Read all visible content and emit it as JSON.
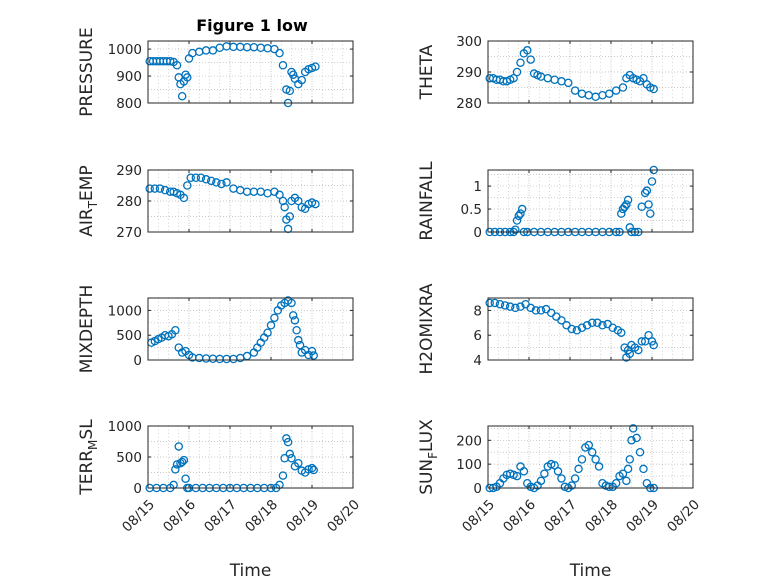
{
  "figure": {
    "title": "Figure 1 low",
    "background": "#ffffff"
  },
  "style": {
    "marker_color": "#0072BD",
    "axis_color": "#262626",
    "grid_color": "#b8b8b8"
  },
  "chart_data": [
    {
      "id": "pressure",
      "type": "scatter",
      "marker": "open-circle",
      "title": "Figure 1 low",
      "ylabel": {
        "main": "PRESSURE"
      },
      "xlabel": "",
      "x_ticks": [],
      "xlim": [
        "08/15",
        "08/20"
      ],
      "ylim": [
        800,
        1030
      ],
      "y_ticks": [
        800,
        900,
        1000
      ],
      "grid": true,
      "x": [
        "08/15 01:00",
        "08/15 03:00",
        "08/15 05:00",
        "08/15 07:00",
        "08/15 09:00",
        "08/15 11:00",
        "08/15 13:00",
        "08/15 15:00",
        "08/15 17:00",
        "08/15 18:00",
        "08/15 19:00",
        "08/15 20:00",
        "08/15 21:00",
        "08/15 22:00",
        "08/15 23:00",
        "08/16 00:00",
        "08/16 02:00",
        "08/16 06:00",
        "08/16 10:00",
        "08/16 14:00",
        "08/16 18:00",
        "08/16 22:00",
        "08/17 02:00",
        "08/17 06:00",
        "08/17 10:00",
        "08/17 14:00",
        "08/17 18:00",
        "08/17 22:00",
        "08/18 02:00",
        "08/18 05:00",
        "08/18 07:00",
        "08/18 09:00",
        "08/18 10:00",
        "08/18 11:00",
        "08/18 12:00",
        "08/18 13:00",
        "08/18 14:00",
        "08/18 16:00",
        "08/18 18:00",
        "08/18 20:00",
        "08/18 22:00",
        "08/19 00:00",
        "08/19 02:00"
      ],
      "y": [
        955,
        955,
        955,
        955,
        955,
        955,
        955,
        952,
        940,
        895,
        870,
        825,
        880,
        905,
        895,
        965,
        985,
        990,
        995,
        995,
        1005,
        1010,
        1008,
        1008,
        1007,
        1007,
        1005,
        1003,
        1000,
        985,
        940,
        850,
        800,
        845,
        915,
        905,
        890,
        870,
        885,
        915,
        925,
        930,
        935
      ]
    },
    {
      "id": "theta",
      "type": "scatter",
      "marker": "open-circle",
      "ylabel": {
        "main": "THETA"
      },
      "xlabel": "",
      "x_ticks": [],
      "xlim": [
        "08/15",
        "08/20"
      ],
      "ylim": [
        280,
        300
      ],
      "y_ticks": [
        280,
        290,
        300
      ],
      "grid": true,
      "x": [
        "08/15 01:00",
        "08/15 03:00",
        "08/15 05:00",
        "08/15 07:00",
        "08/15 09:00",
        "08/15 11:00",
        "08/15 13:00",
        "08/15 15:00",
        "08/15 17:00",
        "08/15 19:00",
        "08/15 21:00",
        "08/15 23:00",
        "08/16 01:00",
        "08/16 03:00",
        "08/16 05:00",
        "08/16 07:00",
        "08/16 11:00",
        "08/16 15:00",
        "08/16 19:00",
        "08/16 23:00",
        "08/17 03:00",
        "08/17 07:00",
        "08/17 11:00",
        "08/17 15:00",
        "08/17 19:00",
        "08/17 23:00",
        "08/18 03:00",
        "08/18 07:00",
        "08/18 09:00",
        "08/18 11:00",
        "08/18 13:00",
        "08/18 15:00",
        "08/18 17:00",
        "08/18 19:00",
        "08/18 21:00",
        "08/18 23:00",
        "08/19 01:00"
      ],
      "y": [
        288,
        288,
        287.5,
        287.5,
        287,
        287,
        287.5,
        288,
        290,
        293,
        296,
        297,
        294,
        289.5,
        289,
        288.5,
        288,
        287.5,
        287,
        286.5,
        284,
        283,
        282.5,
        282,
        282.5,
        283,
        284,
        285,
        288,
        289,
        288,
        287.5,
        287,
        288,
        286,
        285,
        284.5
      ]
    },
    {
      "id": "air_temp",
      "type": "scatter",
      "marker": "open-circle",
      "ylabel": {
        "main": "AIR",
        "sub": "T",
        "rest": "EMP"
      },
      "xlabel": "",
      "x_ticks": [],
      "xlim": [
        "08/15",
        "08/20"
      ],
      "ylim": [
        270,
        290
      ],
      "y_ticks": [
        270,
        280,
        290
      ],
      "grid": true,
      "x": [
        "08/15 01:00",
        "08/15 04:00",
        "08/15 07:00",
        "08/15 10:00",
        "08/15 13:00",
        "08/15 15:00",
        "08/15 17:00",
        "08/15 19:00",
        "08/15 21:00",
        "08/15 23:00",
        "08/16 01:00",
        "08/16 04:00",
        "08/16 07:00",
        "08/16 10:00",
        "08/16 13:00",
        "08/16 16:00",
        "08/16 19:00",
        "08/16 22:00",
        "08/17 02:00",
        "08/17 06:00",
        "08/17 10:00",
        "08/17 14:00",
        "08/17 18:00",
        "08/17 22:00",
        "08/18 02:00",
        "08/18 05:00",
        "08/18 07:00",
        "08/18 08:00",
        "08/18 09:00",
        "08/18 10:00",
        "08/18 11:00",
        "08/18 12:00",
        "08/18 14:00",
        "08/18 16:00",
        "08/18 18:00",
        "08/18 20:00",
        "08/18 22:00",
        "08/19 00:00",
        "08/19 02:00"
      ],
      "y": [
        284,
        284,
        284,
        283.5,
        283,
        283,
        282.5,
        282,
        281,
        285,
        287.5,
        287.5,
        287.5,
        287,
        286.5,
        286,
        285.5,
        286,
        284,
        283.5,
        283,
        283,
        283,
        282.5,
        283,
        282,
        280,
        278,
        274,
        271,
        275,
        280,
        281,
        280,
        278,
        277.5,
        279,
        279.5,
        279
      ]
    },
    {
      "id": "rainfall",
      "type": "scatter",
      "marker": "open-circle",
      "ylabel": {
        "main": "RAINFALL"
      },
      "xlabel": "",
      "x_ticks": [],
      "xlim": [
        "08/15",
        "08/20"
      ],
      "ylim": [
        0,
        1.35
      ],
      "y_ticks": [
        0,
        0.5,
        1
      ],
      "grid": true,
      "x": [
        "08/15 01:00",
        "08/15 04:00",
        "08/15 07:00",
        "08/15 10:00",
        "08/15 13:00",
        "08/15 15:00",
        "08/15 16:00",
        "08/15 17:00",
        "08/15 18:00",
        "08/15 19:00",
        "08/15 20:00",
        "08/15 21:00",
        "08/15 23:00",
        "08/16 03:00",
        "08/16 07:00",
        "08/16 11:00",
        "08/16 15:00",
        "08/16 19:00",
        "08/16 23:00",
        "08/17 03:00",
        "08/17 07:00",
        "08/17 11:00",
        "08/17 15:00",
        "08/17 19:00",
        "08/17 23:00",
        "08/18 03:00",
        "08/18 05:00",
        "08/18 06:00",
        "08/18 07:00",
        "08/18 08:00",
        "08/18 09:00",
        "08/18 10:00",
        "08/18 11:00",
        "08/18 12:00",
        "08/18 14:00",
        "08/18 16:00",
        "08/18 18:00",
        "08/18 20:00",
        "08/18 21:00",
        "08/18 22:00",
        "08/18 23:00",
        "08/19 00:00",
        "08/19 01:00"
      ],
      "y": [
        0,
        0,
        0,
        0,
        0,
        0,
        0.05,
        0.25,
        0.35,
        0.4,
        0.5,
        0,
        0,
        0,
        0,
        0,
        0,
        0,
        0,
        0,
        0,
        0,
        0,
        0,
        0,
        0,
        0,
        0.4,
        0.5,
        0.55,
        0.6,
        0.7,
        0.1,
        0,
        0,
        0,
        0.55,
        0.85,
        0.9,
        0.6,
        0.4,
        1.1,
        1.35
      ]
    },
    {
      "id": "mixdepth",
      "type": "scatter",
      "marker": "open-circle",
      "ylabel": {
        "main": "MIXDEPTH"
      },
      "xlabel": "",
      "x_ticks": [],
      "xlim": [
        "08/15",
        "08/20"
      ],
      "ylim": [
        0,
        1250
      ],
      "y_ticks": [
        0,
        500,
        1000
      ],
      "grid": true,
      "x": [
        "08/15 02:00",
        "08/15 04:00",
        "08/15 06:00",
        "08/15 08:00",
        "08/15 10:00",
        "08/15 12:00",
        "08/15 14:00",
        "08/15 16:00",
        "08/15 18:00",
        "08/15 20:00",
        "08/15 22:00",
        "08/16 00:00",
        "08/16 02:00",
        "08/16 06:00",
        "08/16 10:00",
        "08/16 14:00",
        "08/16 18:00",
        "08/16 22:00",
        "08/17 02:00",
        "08/17 06:00",
        "08/17 10:00",
        "08/17 14:00",
        "08/17 16:00",
        "08/17 18:00",
        "08/17 20:00",
        "08/17 22:00",
        "08/18 00:00",
        "08/18 02:00",
        "08/18 04:00",
        "08/18 06:00",
        "08/18 08:00",
        "08/18 10:00",
        "08/18 12:00",
        "08/18 13:00",
        "08/18 14:00",
        "08/18 15:00",
        "08/18 16:00",
        "08/18 17:00",
        "08/18 18:00",
        "08/18 20:00",
        "08/18 22:00",
        "08/19 00:00",
        "08/19 01:00"
      ],
      "y": [
        350,
        380,
        420,
        450,
        500,
        480,
        520,
        600,
        250,
        150,
        180,
        100,
        50,
        40,
        30,
        25,
        20,
        20,
        20,
        40,
        80,
        150,
        250,
        350,
        450,
        550,
        700,
        850,
        1000,
        1100,
        1150,
        1200,
        1150,
        900,
        800,
        600,
        400,
        300,
        150,
        200,
        100,
        180,
        90
      ]
    },
    {
      "id": "h2omixra",
      "type": "scatter",
      "marker": "open-circle",
      "ylabel": {
        "main": "H2OMIXRA"
      },
      "xlabel": "",
      "x_ticks": [],
      "xlim": [
        "08/15",
        "08/20"
      ],
      "ylim": [
        4,
        9
      ],
      "y_ticks": [
        4,
        6,
        8
      ],
      "grid": true,
      "x": [
        "08/15 01:00",
        "08/15 04:00",
        "08/15 07:00",
        "08/15 10:00",
        "08/15 13:00",
        "08/15 16:00",
        "08/15 19:00",
        "08/15 22:00",
        "08/16 01:00",
        "08/16 04:00",
        "08/16 07:00",
        "08/16 10:00",
        "08/16 13:00",
        "08/16 16:00",
        "08/16 19:00",
        "08/16 22:00",
        "08/17 01:00",
        "08/17 04:00",
        "08/17 07:00",
        "08/17 10:00",
        "08/17 13:00",
        "08/17 16:00",
        "08/17 19:00",
        "08/17 22:00",
        "08/18 01:00",
        "08/18 04:00",
        "08/18 06:00",
        "08/18 08:00",
        "08/18 09:00",
        "08/18 10:00",
        "08/18 11:00",
        "08/18 12:00",
        "08/18 14:00",
        "08/18 16:00",
        "08/18 18:00",
        "08/18 20:00",
        "08/18 22:00",
        "08/19 00:00",
        "08/19 01:00"
      ],
      "y": [
        8.6,
        8.6,
        8.5,
        8.4,
        8.3,
        8.2,
        8.3,
        8.5,
        8.2,
        8.0,
        8.0,
        8.1,
        7.8,
        7.5,
        7.2,
        6.8,
        6.5,
        6.4,
        6.6,
        6.8,
        7.0,
        7.0,
        6.8,
        6.9,
        6.6,
        6.4,
        6.2,
        5.0,
        4.2,
        4.8,
        4.5,
        5.2,
        5.0,
        4.8,
        5.5,
        5.5,
        6.0,
        5.5,
        5.2
      ]
    },
    {
      "id": "terr_msl",
      "type": "scatter",
      "marker": "open-circle",
      "ylabel": {
        "main": "TERR",
        "sub": "M",
        "rest": "SL"
      },
      "xlabel": "Time",
      "xlim": [
        "08/15",
        "08/20"
      ],
      "x_ticks": [
        "08/15",
        "08/16",
        "08/17",
        "08/18",
        "08/19",
        "08/20"
      ],
      "ylim": [
        0,
        1000
      ],
      "y_ticks": [
        0,
        500,
        1000
      ],
      "grid": true,
      "x": [
        "08/15 01:00",
        "08/15 05:00",
        "08/15 09:00",
        "08/15 13:00",
        "08/15 15:00",
        "08/15 16:00",
        "08/15 17:00",
        "08/15 18:00",
        "08/15 19:00",
        "08/15 20:00",
        "08/15 21:00",
        "08/15 22:00",
        "08/15 23:00",
        "08/16 00:00",
        "08/16 04:00",
        "08/16 08:00",
        "08/16 12:00",
        "08/16 16:00",
        "08/16 20:00",
        "08/17 00:00",
        "08/17 04:00",
        "08/17 08:00",
        "08/17 12:00",
        "08/17 16:00",
        "08/17 20:00",
        "08/18 00:00",
        "08/18 03:00",
        "08/18 05:00",
        "08/18 07:00",
        "08/18 08:00",
        "08/18 09:00",
        "08/18 10:00",
        "08/18 11:00",
        "08/18 12:00",
        "08/18 14:00",
        "08/18 16:00",
        "08/18 18:00",
        "08/18 20:00",
        "08/18 22:00",
        "08/19 00:00",
        "08/19 01:00"
      ],
      "y": [
        0,
        0,
        0,
        0,
        50,
        300,
        380,
        670,
        400,
        420,
        450,
        150,
        0,
        0,
        0,
        0,
        0,
        0,
        0,
        0,
        0,
        0,
        0,
        0,
        0,
        0,
        0,
        50,
        200,
        480,
        800,
        740,
        550,
        480,
        350,
        400,
        280,
        250,
        300,
        320,
        290
      ]
    },
    {
      "id": "sun_flux",
      "type": "scatter",
      "marker": "open-circle",
      "ylabel": {
        "main": "SUN",
        "sub": "F",
        "rest": "LUX"
      },
      "xlabel": "Time",
      "xlim": [
        "08/15",
        "08/20"
      ],
      "x_ticks": [
        "08/15",
        "08/16",
        "08/17",
        "08/18",
        "08/19",
        "08/20"
      ],
      "ylim": [
        0,
        260
      ],
      "y_ticks": [
        0,
        100,
        200
      ],
      "grid": true,
      "x": [
        "08/15 01:00",
        "08/15 03:00",
        "08/15 05:00",
        "08/15 07:00",
        "08/15 09:00",
        "08/15 11:00",
        "08/15 13:00",
        "08/15 15:00",
        "08/15 17:00",
        "08/15 19:00",
        "08/15 21:00",
        "08/15 23:00",
        "08/16 01:00",
        "08/16 03:00",
        "08/16 05:00",
        "08/16 07:00",
        "08/16 09:00",
        "08/16 11:00",
        "08/16 13:00",
        "08/16 15:00",
        "08/16 17:00",
        "08/16 19:00",
        "08/16 21:00",
        "08/16 23:00",
        "08/17 01:00",
        "08/17 03:00",
        "08/17 05:00",
        "08/17 07:00",
        "08/17 09:00",
        "08/17 11:00",
        "08/17 13:00",
        "08/17 15:00",
        "08/17 17:00",
        "08/17 19:00",
        "08/17 21:00",
        "08/17 23:00",
        "08/18 01:00",
        "08/18 03:00",
        "08/18 05:00",
        "08/18 07:00",
        "08/18 09:00",
        "08/18 10:00",
        "08/18 11:00",
        "08/18 12:00",
        "08/18 13:00",
        "08/18 15:00",
        "08/18 17:00",
        "08/18 19:00",
        "08/18 21:00",
        "08/18 23:00",
        "08/19 01:00"
      ],
      "y": [
        0,
        0,
        5,
        20,
        40,
        55,
        60,
        55,
        50,
        90,
        70,
        20,
        5,
        0,
        10,
        30,
        60,
        90,
        100,
        95,
        70,
        40,
        5,
        0,
        10,
        40,
        80,
        120,
        170,
        180,
        150,
        120,
        90,
        20,
        10,
        5,
        5,
        20,
        50,
        60,
        30,
        80,
        120,
        200,
        250,
        210,
        150,
        80,
        20,
        0,
        0
      ]
    }
  ]
}
